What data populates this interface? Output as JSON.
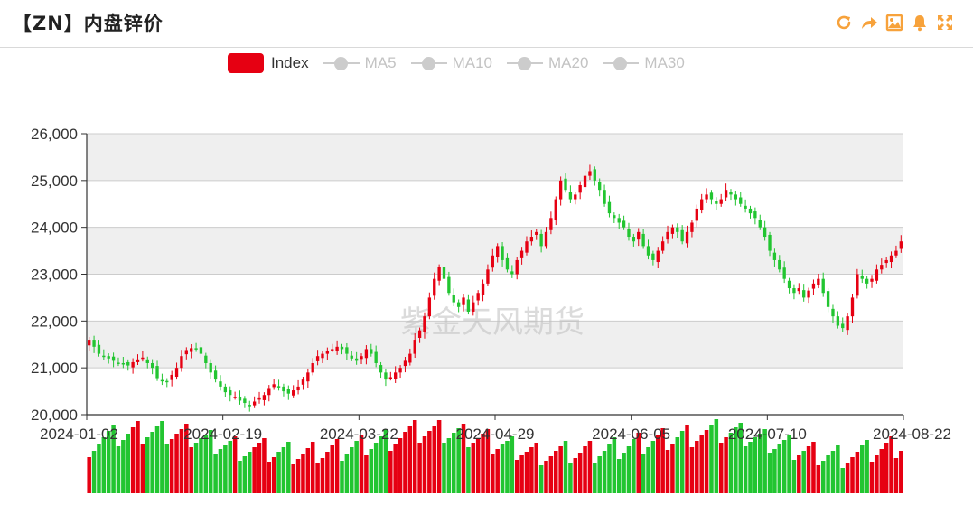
{
  "header": {
    "title": "【ZN】内盘锌价"
  },
  "toolbar": {
    "icons": [
      "refresh-icon",
      "share-icon",
      "save-image-icon",
      "bell-icon",
      "fullscreen-icon"
    ],
    "icon_color": "#f7a23b"
  },
  "legend": {
    "items": [
      {
        "label": "Index",
        "active": true,
        "color": "#e60012"
      },
      {
        "label": "MA5",
        "active": false,
        "color": "#cccccc"
      },
      {
        "label": "MA10",
        "active": false,
        "color": "#cccccc"
      },
      {
        "label": "MA20",
        "active": false,
        "color": "#cccccc"
      },
      {
        "label": "MA30",
        "active": false,
        "color": "#cccccc"
      }
    ]
  },
  "watermark": "紫金天风期货",
  "colors": {
    "up": "#e60012",
    "down": "#22c531",
    "band": "#efefef",
    "grid": "#cccccc"
  },
  "chart_data": {
    "type": "candlestick",
    "title": "【ZN】内盘锌价",
    "ylim": [
      20000,
      26000
    ],
    "yticks": [
      "20,000",
      "21,000",
      "22,000",
      "23,000",
      "24,000",
      "25,000",
      "26,000"
    ],
    "xticks": [
      "2024-01-02",
      "2024-02-19",
      "2024-03-22",
      "2024-04-29",
      "2024-06-05",
      "2024-07-10",
      "2024-08-22"
    ],
    "legend_position": "top-center",
    "grid": true,
    "series": [
      {
        "name": "Index",
        "values": [
          21600,
          21450,
          21300,
          21250,
          21200,
          21150,
          21100,
          21080,
          21050,
          21120,
          21180,
          21220,
          21100,
          21000,
          20780,
          20720,
          20700,
          20850,
          21000,
          21250,
          21380,
          21420,
          21400,
          21300,
          21100,
          20900,
          20750,
          20600,
          20480,
          20420,
          20380,
          20300,
          20250,
          20200,
          20280,
          20350,
          20420,
          20550,
          20650,
          20600,
          20500,
          20450,
          20520,
          20600,
          20750,
          20900,
          21100,
          21250,
          21300,
          21350,
          21400,
          21450,
          21400,
          21300,
          21200,
          21150,
          21250,
          21400,
          21300,
          21100,
          20900,
          20750,
          20800,
          20900,
          21000,
          21150,
          21300,
          21600,
          21800,
          22100,
          22500,
          22900,
          23150,
          22900,
          22600,
          22400,
          22300,
          22500,
          22200,
          22400,
          22600,
          22800,
          23100,
          23400,
          23600,
          23300,
          23100,
          23000,
          23300,
          23500,
          23700,
          23800,
          23900,
          23600,
          23900,
          24200,
          24600,
          25000,
          24800,
          24600,
          24700,
          24900,
          25100,
          25200,
          25000,
          24800,
          24500,
          24300,
          24200,
          24100,
          24000,
          23800,
          23700,
          23900,
          23600,
          23400,
          23300,
          23500,
          23700,
          23900,
          24000,
          23900,
          23700,
          23900,
          24100,
          24400,
          24600,
          24700,
          24600,
          24500,
          24600,
          24800,
          24700,
          24600,
          24500,
          24400,
          24300,
          24200,
          24000,
          23800,
          23500,
          23300,
          23100,
          22900,
          22700,
          22600,
          22700,
          22500,
          22650,
          22800,
          22900,
          22600,
          22300,
          22100,
          21900,
          21850,
          22100,
          22500,
          23000,
          22900,
          22800,
          22900,
          23100,
          23200,
          23300,
          23400,
          23500,
          23700
        ]
      }
    ]
  }
}
